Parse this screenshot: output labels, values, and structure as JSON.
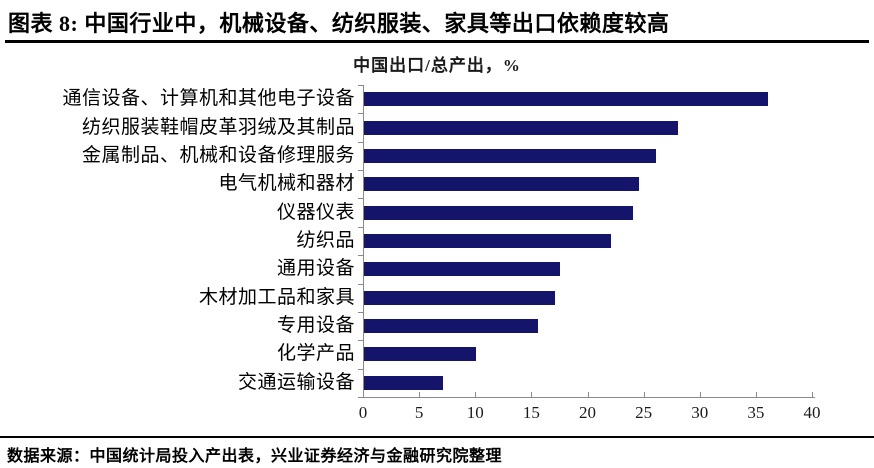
{
  "header": {
    "title": "图表 8:  中国行业中，机械设备、纺织服装、家具等出口依赖度较高"
  },
  "chart_data": {
    "type": "bar",
    "orientation": "horizontal",
    "title": "中国出口/总产出，%",
    "categories": [
      "通信设备、计算机和其他电子设备",
      "纺织服装鞋帽皮革羽绒及其制品",
      "金属制品、机械和设备修理服务",
      "电气机械和器材",
      "仪器仪表",
      "纺织品",
      "通用设备",
      "木材加工品和家具",
      "专用设备",
      "化学产品",
      "交通运输设备"
    ],
    "values": [
      36,
      28,
      26,
      24.5,
      24,
      22,
      17.5,
      17,
      15.5,
      10,
      7
    ],
    "xlim": [
      0,
      40
    ],
    "xticks": [
      0,
      5,
      10,
      15,
      20,
      25,
      30,
      35,
      40
    ],
    "bar_color": "#14146b",
    "axis_color": "#8a8a8a",
    "grid": false,
    "legend": "none"
  },
  "footer": {
    "source": "数据来源：中国统计局投入产出表，兴业证券经济与金融研究院整理"
  }
}
